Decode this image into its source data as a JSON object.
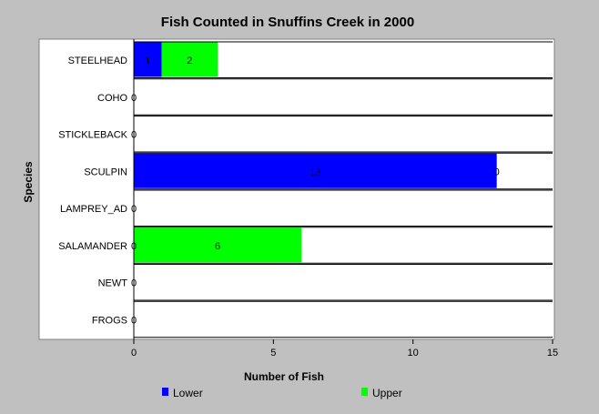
{
  "chart_data": {
    "type": "bar",
    "orientation": "horizontal",
    "stacked": true,
    "title": "Fish Counted in Snuffins Creek in 2000",
    "xlabel": "Number of Fish",
    "ylabel": "Species",
    "xlim": [
      0,
      15
    ],
    "xticks": [
      "0",
      "5",
      "10",
      "15"
    ],
    "categories": [
      "STEELHEAD",
      "COHO",
      "STICKLEBACK",
      "SCULPIN",
      "LAMPREY_AD",
      "SALAMANDER",
      "NEWT",
      "FROGS"
    ],
    "series": [
      {
        "name": "Lower",
        "color": "#0000ff",
        "values": [
          1,
          0,
          0,
          13,
          0,
          0,
          0,
          0
        ]
      },
      {
        "name": "Upper",
        "color": "#00ff00",
        "values": [
          2,
          0,
          0,
          0,
          0,
          6,
          0,
          0
        ]
      }
    ],
    "data_labels": [
      [
        {
          "text": "1",
          "at": 0.5
        },
        {
          "text": "2",
          "at": 2
        }
      ],
      [
        {
          "text": "0",
          "at": 0
        }
      ],
      [
        {
          "text": "0",
          "at": 0
        }
      ],
      [
        {
          "text": "13",
          "at": 6.5
        },
        {
          "text": "0",
          "at": 13
        }
      ],
      [
        {
          "text": "0",
          "at": 0
        }
      ],
      [
        {
          "text": "0",
          "at": 0
        },
        {
          "text": "6",
          "at": 3
        }
      ],
      [
        {
          "text": "0",
          "at": 0
        }
      ],
      [
        {
          "text": "0",
          "at": 0
        }
      ]
    ],
    "legend_position": "bottom",
    "grid": false
  }
}
